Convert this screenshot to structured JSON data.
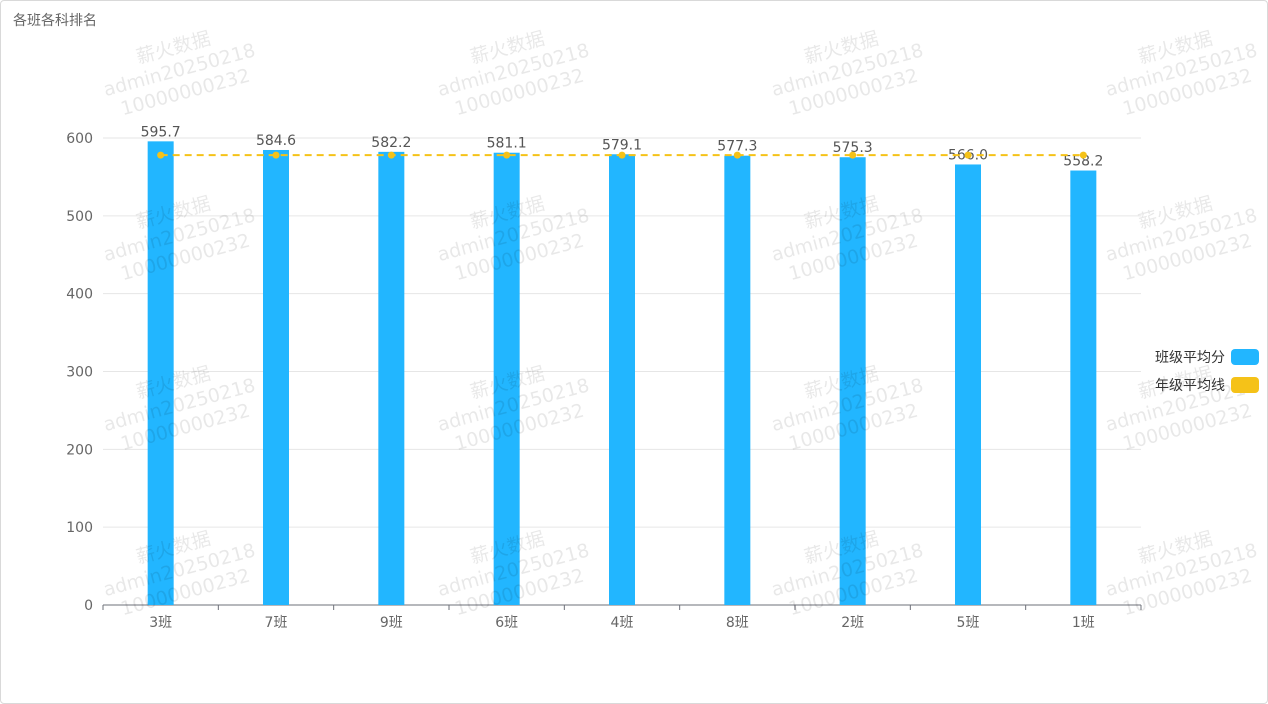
{
  "title": "各班各科排名",
  "watermark": [
    "薪火数据",
    "admin20250218",
    "10000000232"
  ],
  "legend": [
    {
      "label": "班级平均分",
      "color": "#22b6ff"
    },
    {
      "label": "年级平均线",
      "color": "#f5c218"
    }
  ],
  "chart_data": {
    "type": "bar",
    "categories": [
      "3班",
      "7班",
      "9班",
      "6班",
      "4班",
      "8班",
      "2班",
      "5班",
      "1班"
    ],
    "series": [
      {
        "name": "班级平均分",
        "type": "bar",
        "color": "#22b6ff",
        "values": [
          595.7,
          584.6,
          582.2,
          581.1,
          579.1,
          577.3,
          575.3,
          566.0,
          558.2
        ],
        "labels": [
          "595.7",
          "584.6",
          "582.2",
          "581.1",
          "579.1",
          "577.3",
          "575.3",
          "566.0",
          "558.2"
        ]
      },
      {
        "name": "年级平均线",
        "type": "line",
        "style": "dashed",
        "color": "#f5c218",
        "values": [
          578,
          578,
          578,
          578,
          578,
          578,
          578,
          578,
          578
        ]
      }
    ],
    "ylim": [
      0,
      600
    ],
    "yticks": [
      0,
      100,
      200,
      300,
      400,
      500,
      600
    ],
    "grid": true,
    "legend_position": "right"
  }
}
